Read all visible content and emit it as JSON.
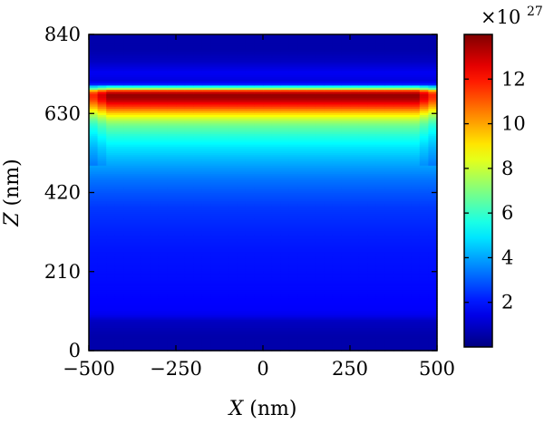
{
  "chart_data": {
    "type": "heatmap",
    "title": "",
    "xlabel_var": "X",
    "xlabel_unit": "(nm)",
    "ylabel_var": "Z",
    "ylabel_unit": "(nm)",
    "xlim": [
      -500,
      500
    ],
    "ylim": [
      0,
      840
    ],
    "x_ticks": [
      -500,
      -250,
      0,
      250,
      500
    ],
    "x_tick_labels": [
      "−500",
      "−250",
      "0",
      "250",
      "500"
    ],
    "y_ticks": [
      0,
      210,
      420,
      630,
      840
    ],
    "y_tick_labels": [
      "0",
      "210",
      "420",
      "630",
      "840"
    ],
    "colorbar": {
      "range": [
        0,
        14
      ],
      "ticks": [
        2,
        4,
        6,
        8,
        10,
        12
      ],
      "tick_labels": [
        "2",
        "4",
        "6",
        "8",
        "10",
        "12"
      ],
      "multiplier_base": "×10",
      "multiplier_exponent": "27",
      "colormap": "jet"
    },
    "z_profile": {
      "z": [
        0,
        40,
        80,
        95,
        110,
        150,
        200,
        260,
        320,
        380,
        420,
        460,
        500,
        540,
        570,
        600,
        615,
        630,
        645,
        660,
        672,
        682,
        690,
        697,
        703,
        708,
        718,
        740,
        770,
        800,
        840
      ],
      "value": [
        0.6,
        0.6,
        0.9,
        1.5,
        1.7,
        1.8,
        1.9,
        2.0,
        2.2,
        2.5,
        2.9,
        3.4,
        4.1,
        4.9,
        5.7,
        6.8,
        7.8,
        9.2,
        11.0,
        12.6,
        13.6,
        13.7,
        12.4,
        7.5,
        5.2,
        2.2,
        1.3,
        1.6,
        0.9,
        0.6,
        0.6
      ]
    },
    "edge_effect": {
      "edge_fraction": 0.06,
      "factor": 0.82
    }
  }
}
